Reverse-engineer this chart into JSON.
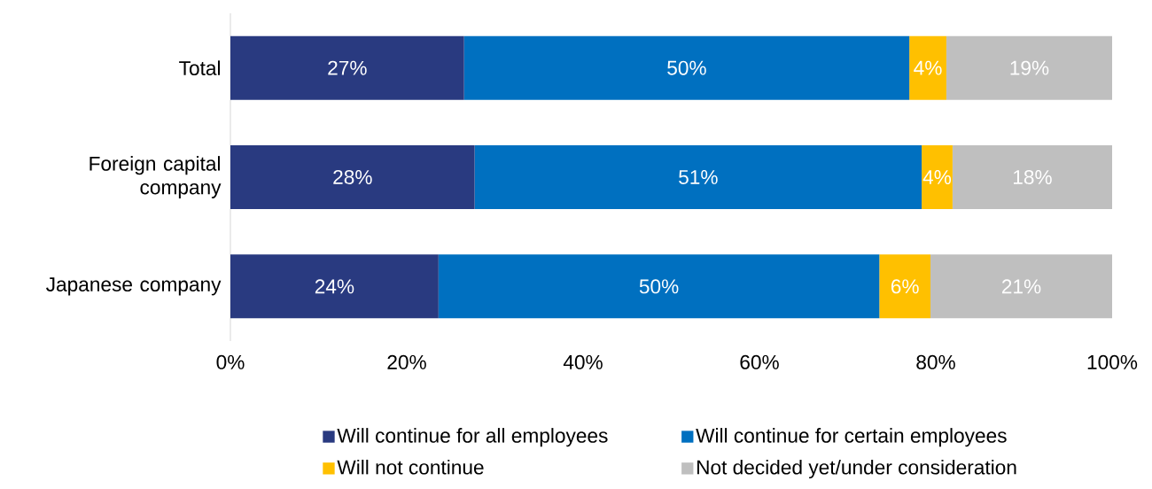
{
  "chart_data": {
    "type": "bar",
    "orientation": "horizontal",
    "stacked": true,
    "categories": [
      "Total",
      "Foreign capital company",
      "Japanese company"
    ],
    "series": [
      {
        "name": "Will continue for all employees",
        "color": "#293a80",
        "values": [
          26.5,
          27.7,
          23.6
        ],
        "value_labels": [
          "27%",
          "28%",
          "24%"
        ]
      },
      {
        "name": "Will continue for certain employees",
        "color": "#0070c0",
        "values": [
          50.5,
          50.7,
          50.0
        ],
        "value_labels": [
          "50%",
          "51%",
          "50%"
        ]
      },
      {
        "name": "Will not continue",
        "color": "#ffc000",
        "values": [
          4.2,
          3.5,
          5.8
        ],
        "value_labels": [
          "4%",
          "4%",
          "6%"
        ]
      },
      {
        "name": "Not decided yet/under consideration",
        "color": "#bfbfbf",
        "values": [
          18.8,
          18.1,
          20.6
        ],
        "value_labels": [
          "19%",
          "18%",
          "21%"
        ]
      }
    ],
    "xlim": [
      0,
      100
    ],
    "xticks": [
      {
        "value": 0,
        "label": "0%"
      },
      {
        "value": 20,
        "label": "20%"
      },
      {
        "value": 40,
        "label": "40%"
      },
      {
        "value": 60,
        "label": "60%"
      },
      {
        "value": 80,
        "label": "80%"
      },
      {
        "value": 100,
        "label": "100%"
      }
    ],
    "legend": "bottom",
    "grid": false
  }
}
